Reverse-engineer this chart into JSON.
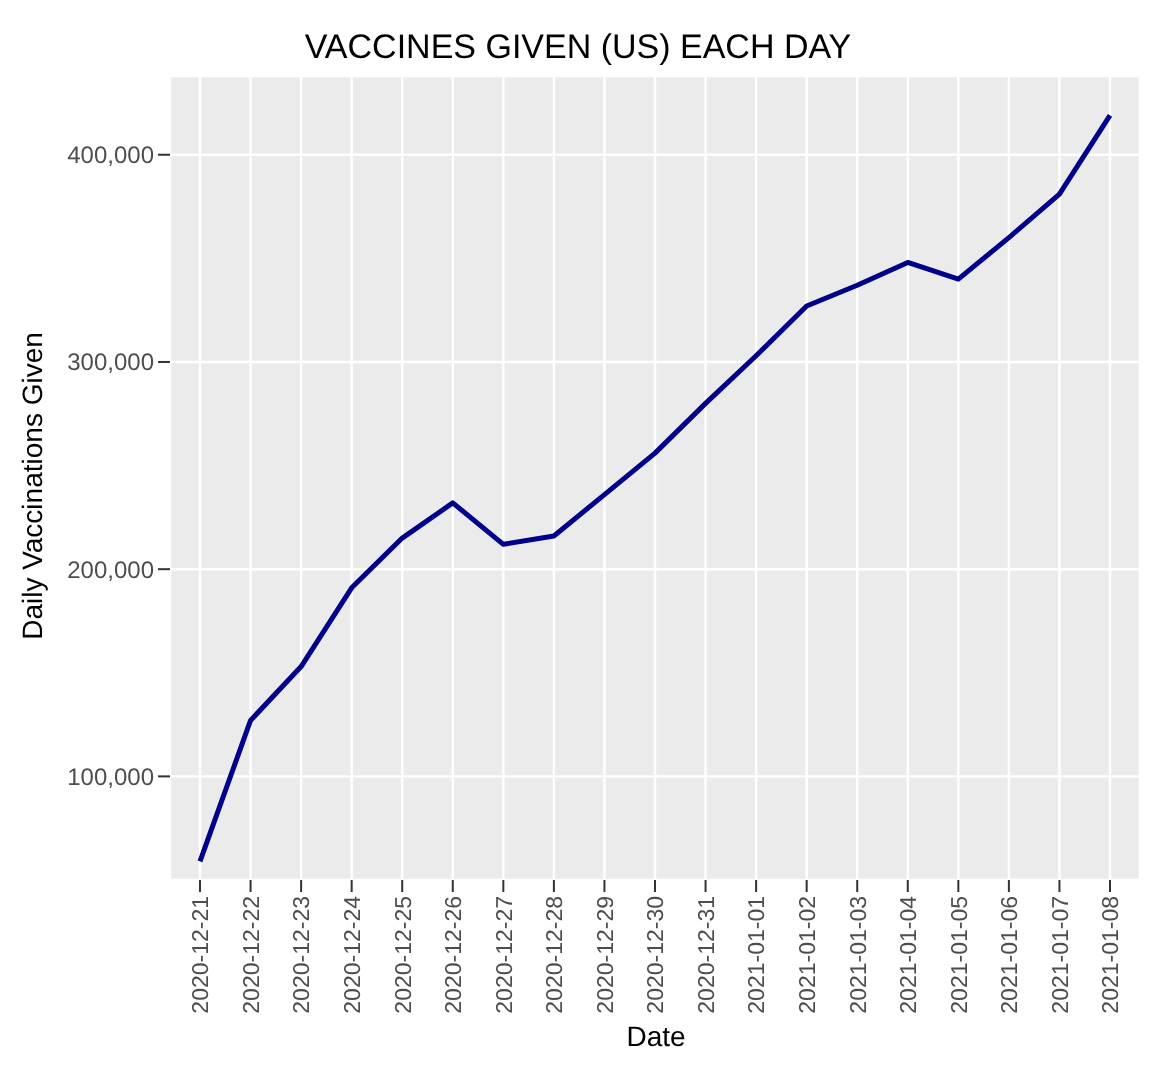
{
  "chart_data": {
    "type": "line",
    "title": "VACCINES GIVEN (US) EACH DAY",
    "xlabel": "Date",
    "ylabel": "Daily Vaccinations Given",
    "categories": [
      "2020-12-21",
      "2020-12-22",
      "2020-12-23",
      "2020-12-24",
      "2020-12-25",
      "2020-12-26",
      "2020-12-27",
      "2020-12-28",
      "2020-12-29",
      "2020-12-30",
      "2020-12-31",
      "2021-01-01",
      "2021-01-02",
      "2021-01-03",
      "2021-01-04",
      "2021-01-05",
      "2021-01-06",
      "2021-01-07",
      "2021-01-08"
    ],
    "series": [
      {
        "color": "#00008b",
        "values": [
          59000,
          127000,
          153000,
          191000,
          215000,
          232000,
          212000,
          216000,
          236000,
          256000,
          280000,
          303000,
          327000,
          337000,
          348000,
          340000,
          360000,
          381000,
          419000
        ]
      }
    ],
    "ylim": [
      50000,
      438000
    ],
    "yticks": [
      {
        "value": 100000,
        "label": "100,000"
      },
      {
        "value": 200000,
        "label": "200,000"
      },
      {
        "value": 300000,
        "label": "300,000"
      },
      {
        "value": 400000,
        "label": "400,000"
      }
    ],
    "grid": true,
    "marker": "none",
    "line_style": "solid",
    "legend": false
  }
}
